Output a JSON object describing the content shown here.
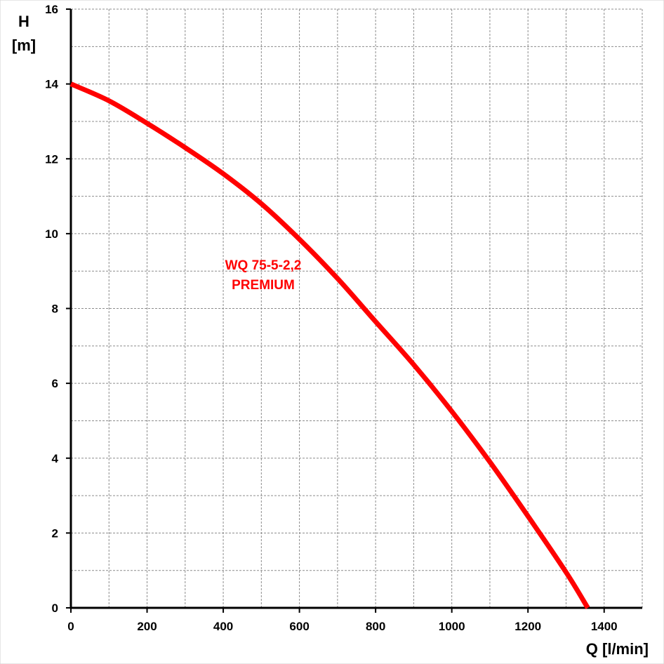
{
  "chart_data": {
    "type": "line",
    "title": "",
    "xlabel": "Q [l/min]",
    "ylabel_line1": "H",
    "ylabel_line2": "[m]",
    "xlim": [
      0,
      1500
    ],
    "ylim": [
      0,
      16
    ],
    "x_ticks": [
      0,
      200,
      400,
      600,
      800,
      1000,
      1200,
      1400
    ],
    "y_ticks": [
      0,
      2,
      4,
      6,
      8,
      10,
      12,
      14,
      16
    ],
    "x_minor_step": 100,
    "y_minor_step": 1,
    "grid": true,
    "series": [
      {
        "name_line1": "WQ 75-5-2,2",
        "name_line2": "PREMIUM",
        "color": "#ff0000",
        "x": [
          0,
          100,
          200,
          300,
          400,
          500,
          600,
          700,
          800,
          900,
          1000,
          1100,
          1200,
          1300,
          1357
        ],
        "y": [
          14.0,
          13.55,
          12.95,
          12.3,
          11.6,
          10.8,
          9.85,
          8.8,
          7.65,
          6.5,
          5.25,
          3.9,
          2.45,
          0.95,
          0.0
        ]
      }
    ]
  }
}
